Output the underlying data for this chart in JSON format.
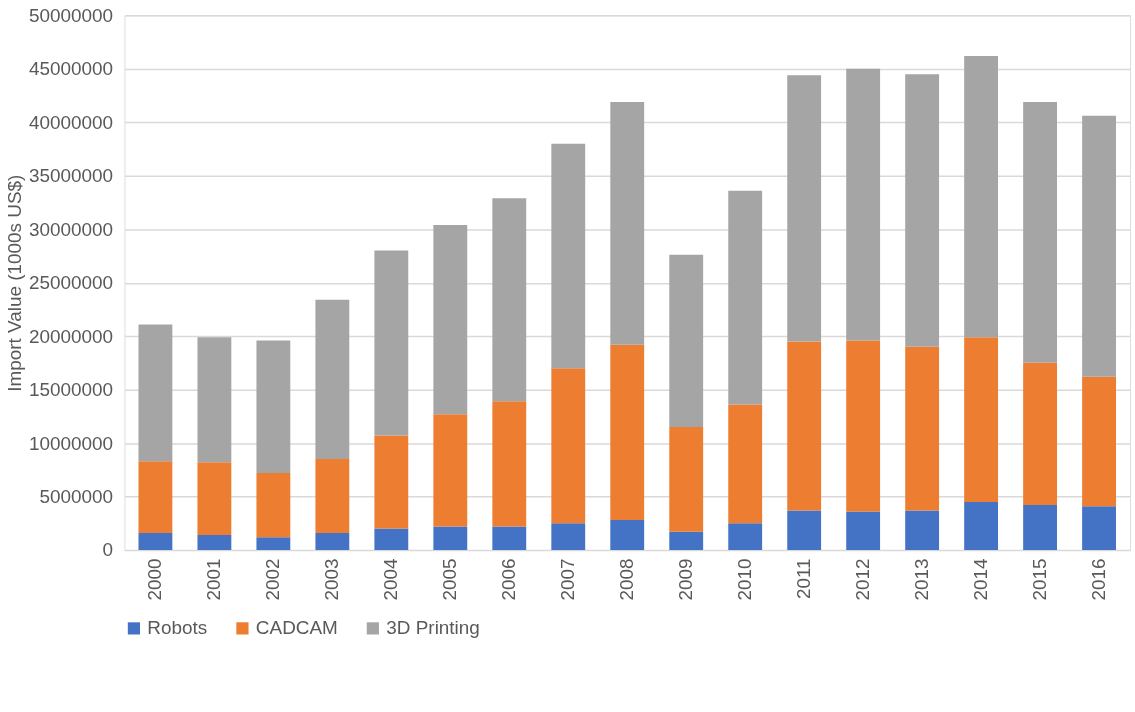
{
  "chart_data": {
    "type": "bar",
    "stacked": true,
    "ylabel": "Import Value (1000s US$)",
    "categories": [
      "2000",
      "2001",
      "2002",
      "2003",
      "2004",
      "2005",
      "2006",
      "2007",
      "2008",
      "2009",
      "2010",
      "2011",
      "2012",
      "2013",
      "2014",
      "2015",
      "2016"
    ],
    "series": [
      {
        "name": "Robots",
        "color": "#4472c4",
        "values": [
          1600000,
          1400000,
          1200000,
          1600000,
          2000000,
          2200000,
          2200000,
          2500000,
          2800000,
          1700000,
          2500000,
          3700000,
          3600000,
          3700000,
          4500000,
          4200000,
          4100000
        ]
      },
      {
        "name": "CADCAM",
        "color": "#ed7d31",
        "values": [
          6700000,
          6800000,
          6000000,
          6900000,
          8700000,
          10500000,
          11700000,
          14500000,
          16400000,
          9800000,
          11100000,
          15800000,
          16000000,
          15300000,
          15400000,
          13300000,
          12100000
        ]
      },
      {
        "name": "3D Printing",
        "color": "#a5a5a5",
        "values": [
          12800000,
          11700000,
          12400000,
          14900000,
          17300000,
          17700000,
          19000000,
          21000000,
          22700000,
          16100000,
          20000000,
          24900000,
          25400000,
          25500000,
          26300000,
          24400000,
          24400000
        ]
      }
    ],
    "ylim": [
      0,
      50000000
    ],
    "yticks": [
      0,
      5000000,
      10000000,
      15000000,
      20000000,
      25000000,
      30000000,
      35000000,
      40000000,
      45000000,
      50000000
    ],
    "grid": "y",
    "legend": "bottom"
  }
}
